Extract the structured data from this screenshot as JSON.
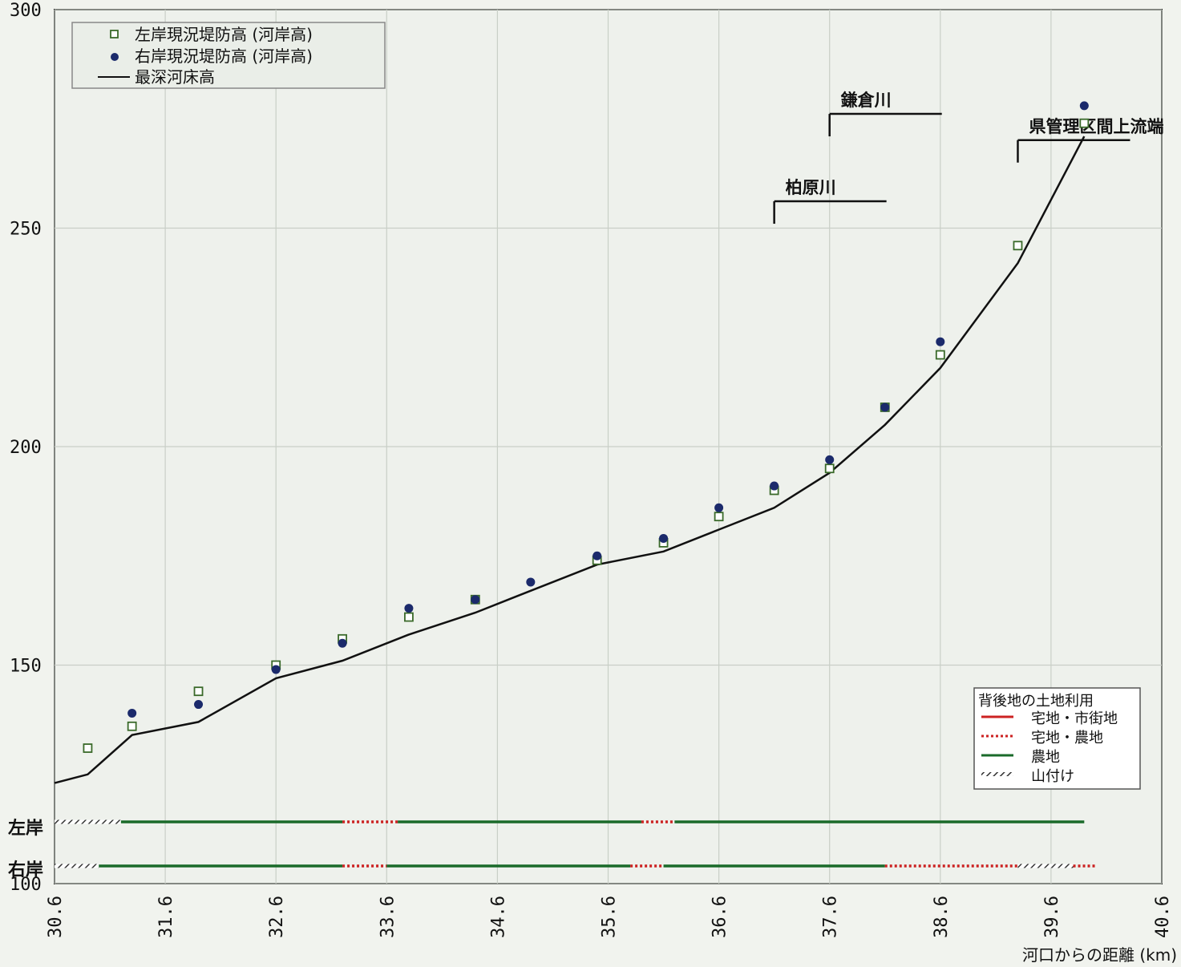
{
  "chart_data": {
    "type": "scatter",
    "xlabel": "河口からの距離 (km)",
    "ylabel": "",
    "xlim": [
      30.6,
      40.6
    ],
    "ylim": [
      100,
      300
    ],
    "x_ticks": [
      "30.6",
      "31.6",
      "32.6",
      "33.6",
      "34.6",
      "35.6",
      "36.6",
      "37.6",
      "38.6",
      "39.6",
      "40.6"
    ],
    "y_ticks": [
      "100",
      "150",
      "200",
      "250",
      "300"
    ],
    "grid": true,
    "legend_position": "top-left",
    "series": [
      {
        "name": "左岸現況堤防高 (河岸高)",
        "marker": "open-square",
        "color": "#3a6a2a",
        "points": [
          {
            "x": 30.9,
            "y": 131
          },
          {
            "x": 31.3,
            "y": 136
          },
          {
            "x": 31.9,
            "y": 144
          },
          {
            "x": 32.6,
            "y": 150
          },
          {
            "x": 33.2,
            "y": 156
          },
          {
            "x": 33.8,
            "y": 161
          },
          {
            "x": 34.4,
            "y": 165
          },
          {
            "x": 35.5,
            "y": 174
          },
          {
            "x": 36.1,
            "y": 178
          },
          {
            "x": 36.6,
            "y": 184
          },
          {
            "x": 37.1,
            "y": 190
          },
          {
            "x": 37.6,
            "y": 195
          },
          {
            "x": 38.1,
            "y": 209
          },
          {
            "x": 38.6,
            "y": 221
          },
          {
            "x": 39.3,
            "y": 246
          },
          {
            "x": 39.9,
            "y": 274
          }
        ]
      },
      {
        "name": "右岸現況堤防高 (河岸高)",
        "marker": "filled-circle",
        "color": "#1b2a6b",
        "points": [
          {
            "x": 31.3,
            "y": 139
          },
          {
            "x": 31.9,
            "y": 141
          },
          {
            "x": 32.6,
            "y": 149
          },
          {
            "x": 33.2,
            "y": 155
          },
          {
            "x": 33.8,
            "y": 163
          },
          {
            "x": 34.4,
            "y": 165
          },
          {
            "x": 34.9,
            "y": 169
          },
          {
            "x": 35.5,
            "y": 175
          },
          {
            "x": 36.1,
            "y": 179
          },
          {
            "x": 36.6,
            "y": 186
          },
          {
            "x": 37.1,
            "y": 191
          },
          {
            "x": 37.6,
            "y": 197
          },
          {
            "x": 38.1,
            "y": 209
          },
          {
            "x": 38.6,
            "y": 224
          },
          {
            "x": 39.9,
            "y": 278
          }
        ]
      },
      {
        "name": "最深河床高",
        "marker": "line",
        "color": "#111111",
        "points": [
          {
            "x": 30.6,
            "y": 123
          },
          {
            "x": 30.9,
            "y": 125
          },
          {
            "x": 31.3,
            "y": 134
          },
          {
            "x": 31.9,
            "y": 137
          },
          {
            "x": 32.6,
            "y": 147
          },
          {
            "x": 33.2,
            "y": 151
          },
          {
            "x": 33.8,
            "y": 157
          },
          {
            "x": 34.4,
            "y": 162
          },
          {
            "x": 34.9,
            "y": 167
          },
          {
            "x": 35.5,
            "y": 173
          },
          {
            "x": 36.1,
            "y": 176
          },
          {
            "x": 36.6,
            "y": 181
          },
          {
            "x": 37.1,
            "y": 186
          },
          {
            "x": 37.6,
            "y": 194
          },
          {
            "x": 38.1,
            "y": 205
          },
          {
            "x": 38.6,
            "y": 218
          },
          {
            "x": 39.3,
            "y": 242
          },
          {
            "x": 39.9,
            "y": 271
          }
        ]
      }
    ],
    "annotations": [
      {
        "text": "県管理区間上流端",
        "x": 39.3,
        "y": 265
      },
      {
        "text": "鎌倉川",
        "x": 37.6,
        "y": 271
      },
      {
        "text": "柏原川",
        "x": 37.1,
        "y": 251
      }
    ],
    "land_use": {
      "legend_title": "背後地の土地利用",
      "categories": [
        {
          "key": "urban",
          "label": "宅地・市街地",
          "color": "#cc2222",
          "style": "solid"
        },
        {
          "key": "mixed",
          "label": "宅地・農地",
          "color": "#cc2222",
          "style": "dotted"
        },
        {
          "key": "farm",
          "label": "農地",
          "color": "#1a6a2a",
          "style": "solid"
        },
        {
          "key": "mountain",
          "label": "山付け",
          "color": "#333333",
          "style": "hatched"
        }
      ],
      "left_bank_label": "左岸",
      "right_bank_label": "右岸",
      "left_bank": [
        {
          "from": 30.6,
          "to": 31.2,
          "type": "mountain"
        },
        {
          "from": 31.2,
          "to": 33.2,
          "type": "farm"
        },
        {
          "from": 33.2,
          "to": 33.7,
          "type": "mixed"
        },
        {
          "from": 33.7,
          "to": 35.9,
          "type": "farm"
        },
        {
          "from": 35.9,
          "to": 36.2,
          "type": "mixed"
        },
        {
          "from": 36.2,
          "to": 39.9,
          "type": "farm"
        }
      ],
      "right_bank": [
        {
          "from": 30.6,
          "to": 31.0,
          "type": "mountain"
        },
        {
          "from": 31.0,
          "to": 33.2,
          "type": "farm"
        },
        {
          "from": 33.2,
          "to": 33.6,
          "type": "mixed"
        },
        {
          "from": 33.6,
          "to": 35.8,
          "type": "farm"
        },
        {
          "from": 35.8,
          "to": 36.1,
          "type": "mixed"
        },
        {
          "from": 36.1,
          "to": 38.1,
          "type": "farm"
        },
        {
          "from": 38.1,
          "to": 39.3,
          "type": "mixed"
        },
        {
          "from": 39.3,
          "to": 39.8,
          "type": "mountain"
        },
        {
          "from": 39.8,
          "to": 40.0,
          "type": "mixed"
        }
      ]
    }
  }
}
